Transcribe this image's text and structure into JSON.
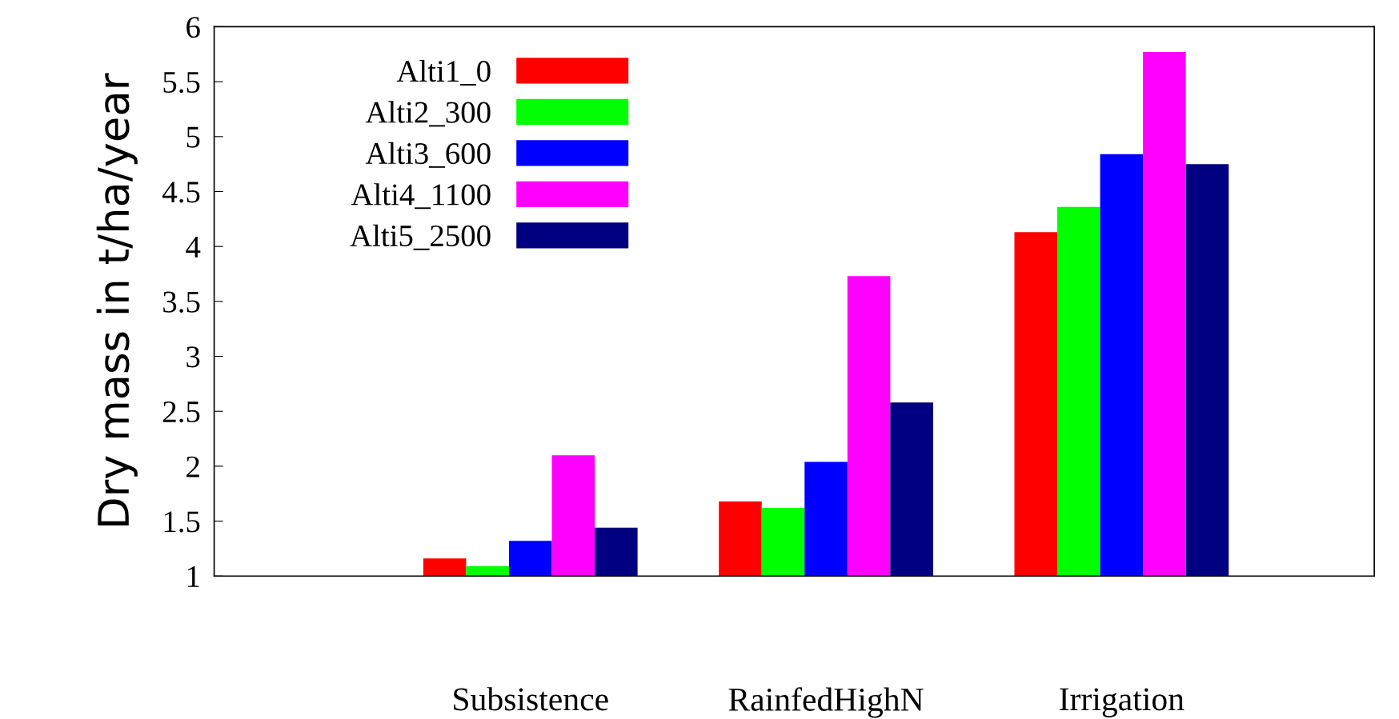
{
  "chart_data": {
    "type": "bar",
    "ylabel": "Dry mass in t/ha/year",
    "categories": [
      "Subsistence",
      "RainfedHighN",
      "Irrigation"
    ],
    "series": [
      {
        "name": "Alti1_0",
        "color": "#ff0000",
        "values": [
          1.16,
          1.68,
          4.13
        ]
      },
      {
        "name": "Alti2_300",
        "color": "#00ff00",
        "values": [
          1.09,
          1.62,
          4.36
        ]
      },
      {
        "name": "Alti3_600",
        "color": "#0000ff",
        "values": [
          1.32,
          2.04,
          4.84
        ]
      },
      {
        "name": "Alti4_1100",
        "color": "#ff00ff",
        "values": [
          2.1,
          3.73,
          5.77
        ]
      },
      {
        "name": "Alti5_2500",
        "color": "#000080",
        "values": [
          1.44,
          2.58,
          4.75
        ]
      }
    ],
    "ylim": [
      1,
      6
    ],
    "yticks": [
      1,
      1.5,
      2,
      2.5,
      3,
      3.5,
      4,
      4.5,
      5,
      5.5,
      6
    ],
    "grid": false,
    "legend": "top left"
  }
}
